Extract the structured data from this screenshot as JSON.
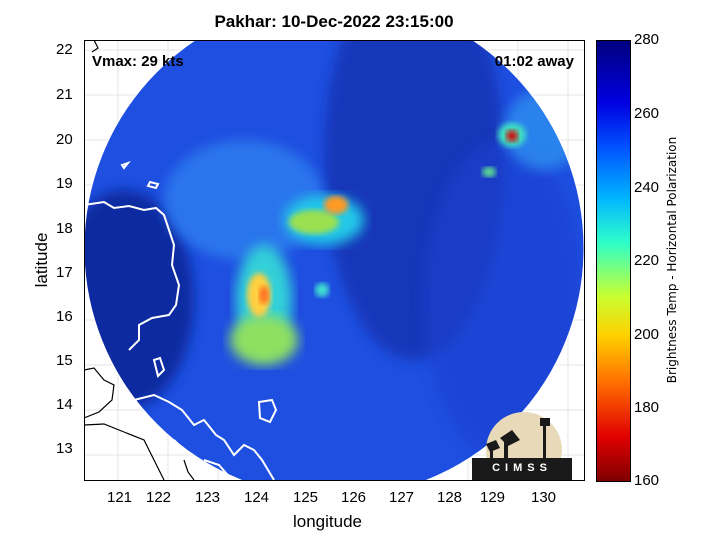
{
  "title": "Pakhar: 10-Dec-2022 23:15:00",
  "vmax_label": "Vmax: 29 kts",
  "time_label": "01:02 away",
  "xlabel": "longitude",
  "ylabel": "latitude",
  "x_ticks": [
    "121",
    "122",
    "123",
    "124",
    "125",
    "126",
    "127",
    "128",
    "129",
    "130"
  ],
  "y_ticks": [
    "22",
    "21",
    "20",
    "19",
    "18",
    "17",
    "16",
    "15",
    "14",
    "13"
  ],
  "colorbar": {
    "label": "Brightness Temp - Horizontal Polarization",
    "ticks": [
      "280",
      "260",
      "240",
      "220",
      "200",
      "180",
      "160"
    ]
  },
  "logo_text": "CIMSS",
  "colors": {
    "swath_base": "#1a4fd8",
    "background": "#ffffff"
  }
}
